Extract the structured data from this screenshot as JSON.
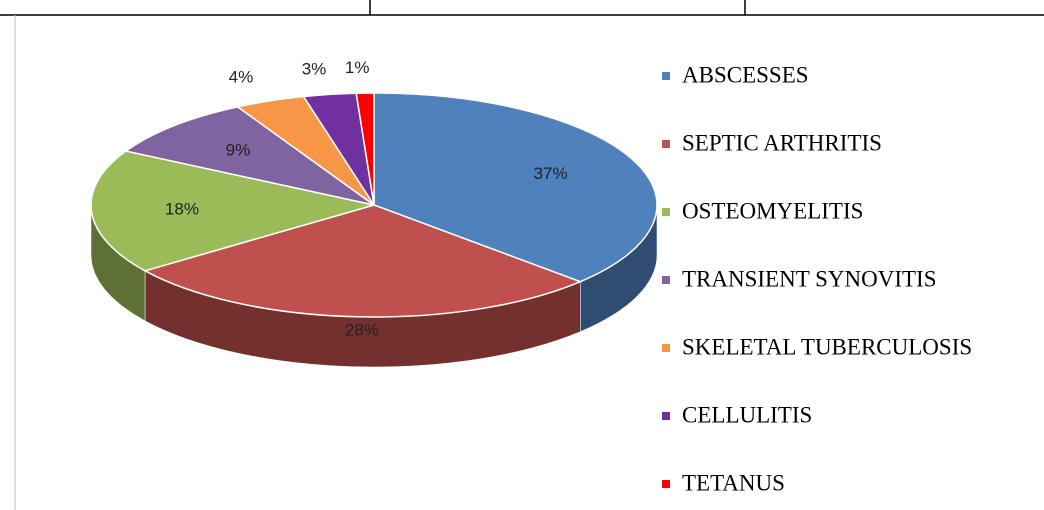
{
  "chart_data": {
    "type": "pie",
    "view": "3d",
    "categories": [
      "ABSCESSES",
      "SEPTIC ARTHRITIS",
      "OSTEOMYELITIS",
      "TRANSIENT SYNOVITIS",
      "SKELETAL TUBERCULOSIS",
      "CELLULITIS",
      "TETANUS"
    ],
    "values": [
      37,
      28,
      18,
      9,
      4,
      3,
      1
    ],
    "value_labels": [
      "37%",
      "28%",
      "18%",
      "9%",
      "4%",
      "3%",
      "1%"
    ],
    "colors": [
      "#4f81bd",
      "#c0504d",
      "#9bbb59",
      "#8064a2",
      "#f79646",
      "#7030a0",
      "#ff0000"
    ],
    "legend": "right"
  }
}
